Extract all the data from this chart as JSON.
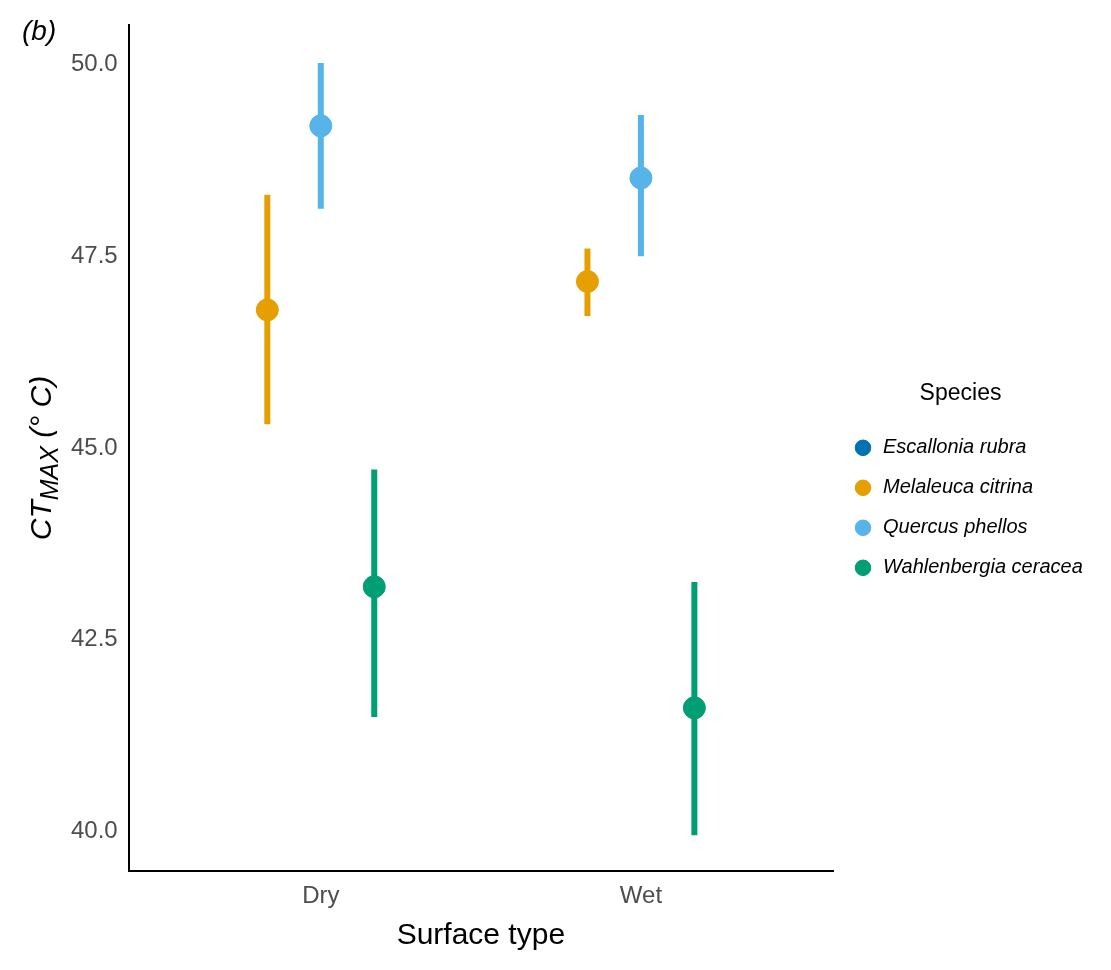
{
  "chart_data": {
    "type": "scatter",
    "xlabel": "Surface type",
    "ylabel": "CT$_{MAX}$ (° C)",
    "legend_title": "Species",
    "legend": "right",
    "grid": false,
    "marker": "circle",
    "categories": [
      "Dry",
      "Wet"
    ],
    "ylim": [
      39.48,
      50.51
    ],
    "yticks": [
      {
        "value": 40,
        "label": "40.0"
      },
      {
        "value": 42.5,
        "label": "42.5"
      },
      {
        "value": 45,
        "label": "45.0"
      },
      {
        "value": 47.5,
        "label": "47.5"
      },
      {
        "value": 50,
        "label": "50.0"
      }
    ],
    "annotations": [
      "(b)"
    ],
    "series": [
      {
        "name": "Escallonia rubra",
        "color": "#0072b2",
        "values": [
          null,
          null
        ],
        "errors": [
          null,
          null
        ]
      },
      {
        "name": "Melaleuca citrina",
        "color": "#e69f00",
        "values": [
          46.8,
          47.17
        ],
        "errors": [
          [
            45.31,
            48.3
          ],
          [
            46.72,
            47.6
          ]
        ]
      },
      {
        "name": "Quercus phellos",
        "color": "#56b4e9",
        "values": [
          49.2,
          48.52
        ],
        "errors": [
          [
            48.12,
            50.02
          ],
          [
            47.5,
            49.34
          ]
        ]
      },
      {
        "name": "Wahlenbergia ceracea",
        "color": "#009e73",
        "values": [
          43.19,
          41.61
        ],
        "errors": [
          [
            41.49,
            44.72
          ],
          [
            39.95,
            43.25
          ]
        ]
      }
    ]
  }
}
